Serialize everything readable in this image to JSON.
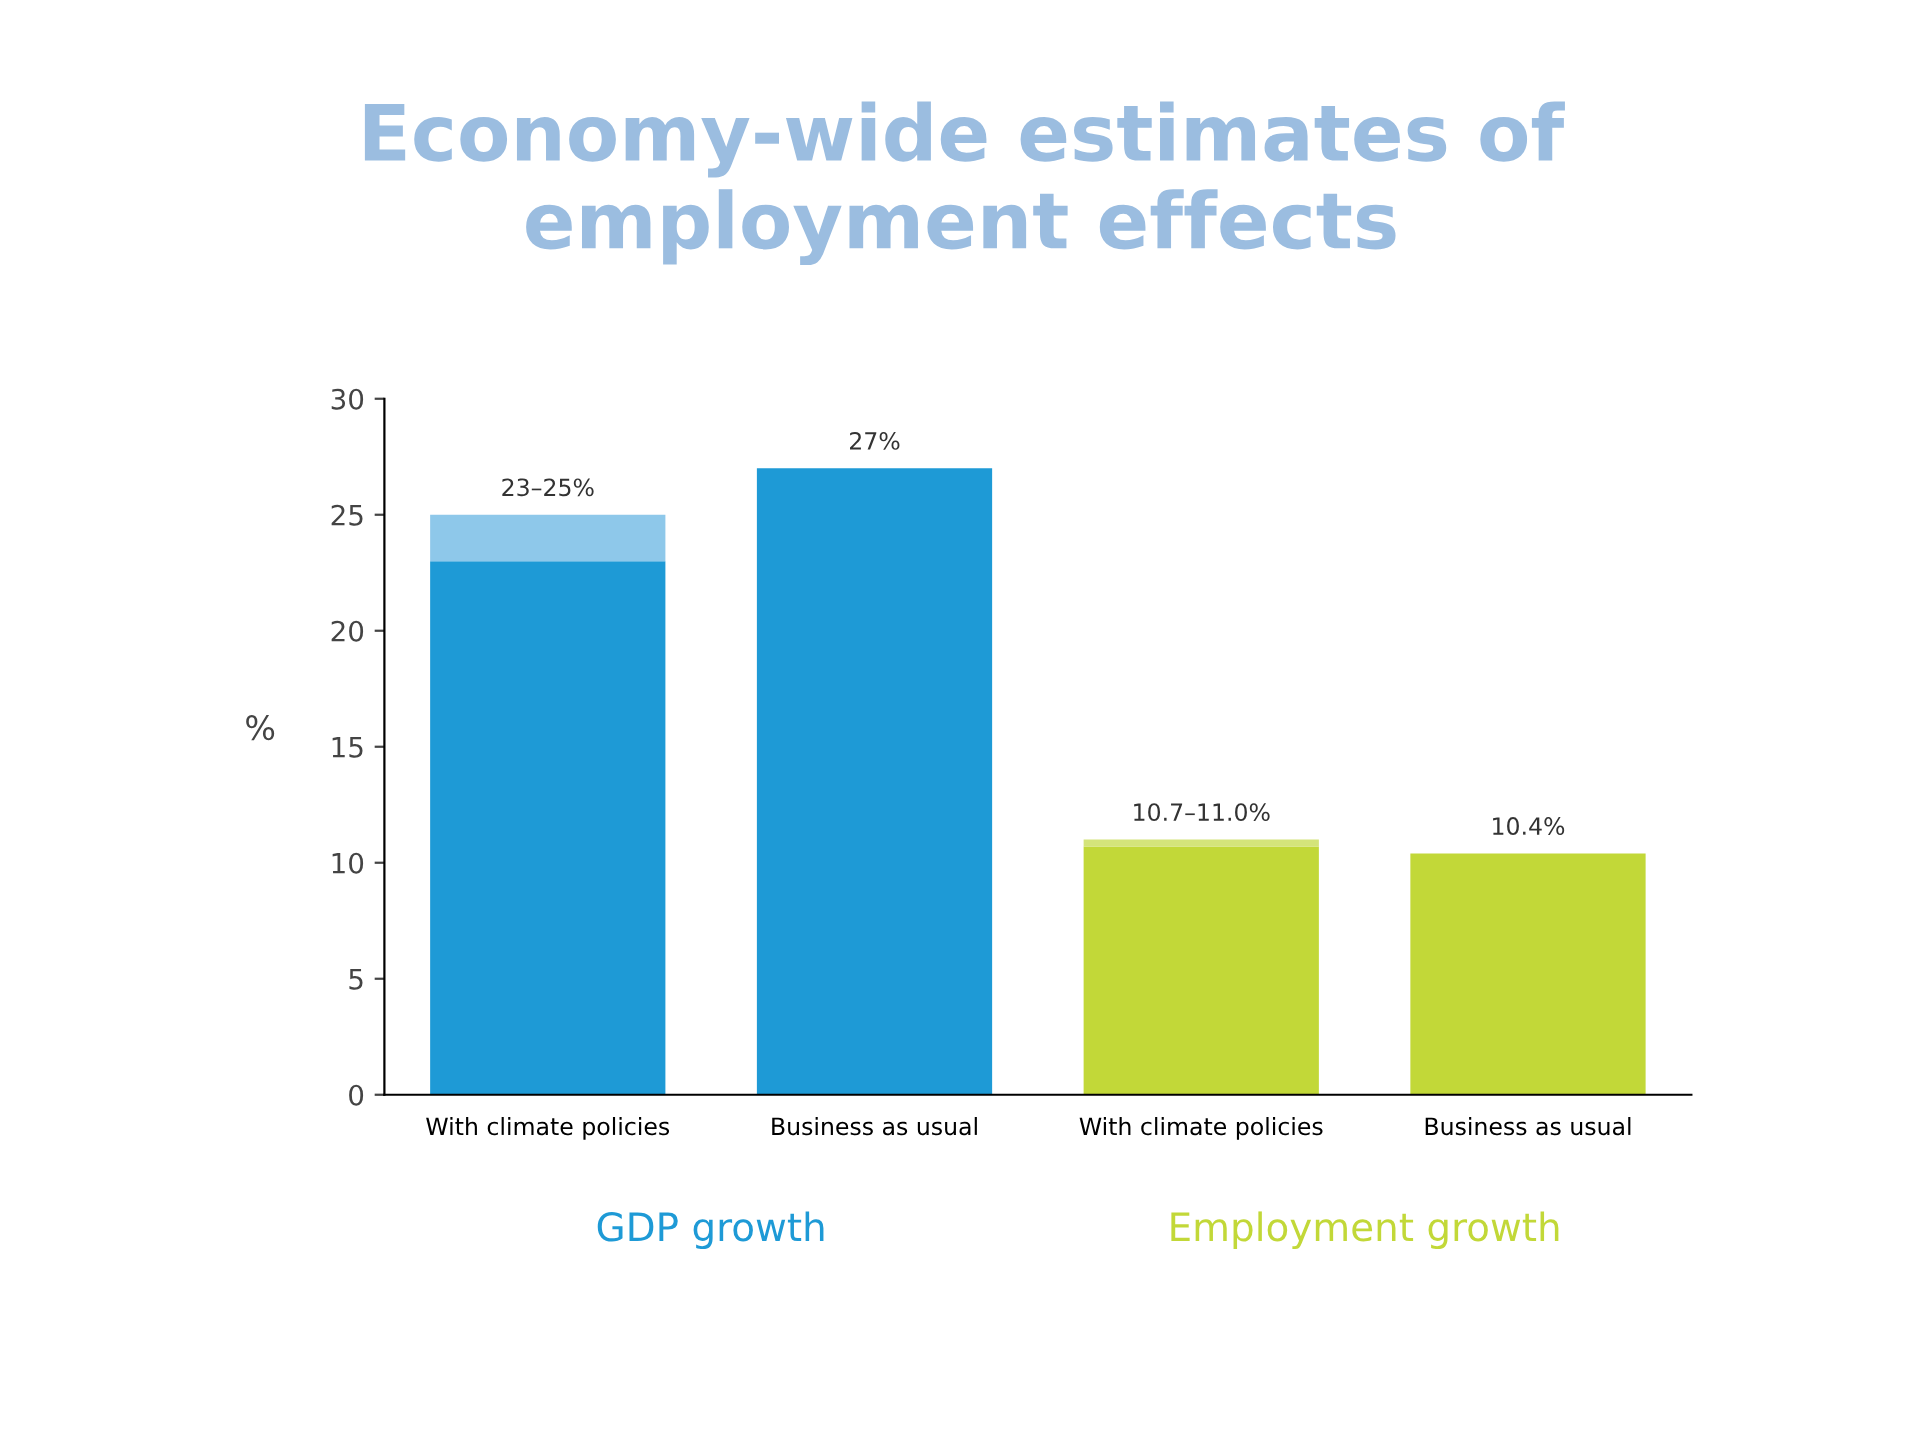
{
  "chart_data": {
    "type": "bar",
    "title": "Economy-wide estimates of\nemployment effects",
    "ylabel": "%",
    "categories": [
      "With climate policies",
      "Business as usual",
      "With climate policies",
      "Business as usual"
    ],
    "stacked": true,
    "series": [
      {
        "colors": [
          "#1e9ad6",
          "#1e9ad6",
          "#c2d838",
          "#c2d838"
        ],
        "values": [
          23,
          27,
          10.7,
          10.4
        ]
      },
      {
        "colors": [
          "#8ec8ea",
          "#8ec8ea",
          "#d4e47a",
          "#d4e47a"
        ],
        "values": [
          2,
          null,
          0.3,
          null
        ]
      }
    ],
    "totals": [
      "23–25%",
      "27%",
      "10.7–11.0%",
      "10.4%"
    ],
    "annotations": [
      "GDP growth",
      "Employment growth"
    ],
    "ylim": [
      0,
      30
    ],
    "yticks": [
      0,
      5,
      10,
      15,
      20,
      25,
      30
    ],
    "grid": false,
    "legend": false
  }
}
